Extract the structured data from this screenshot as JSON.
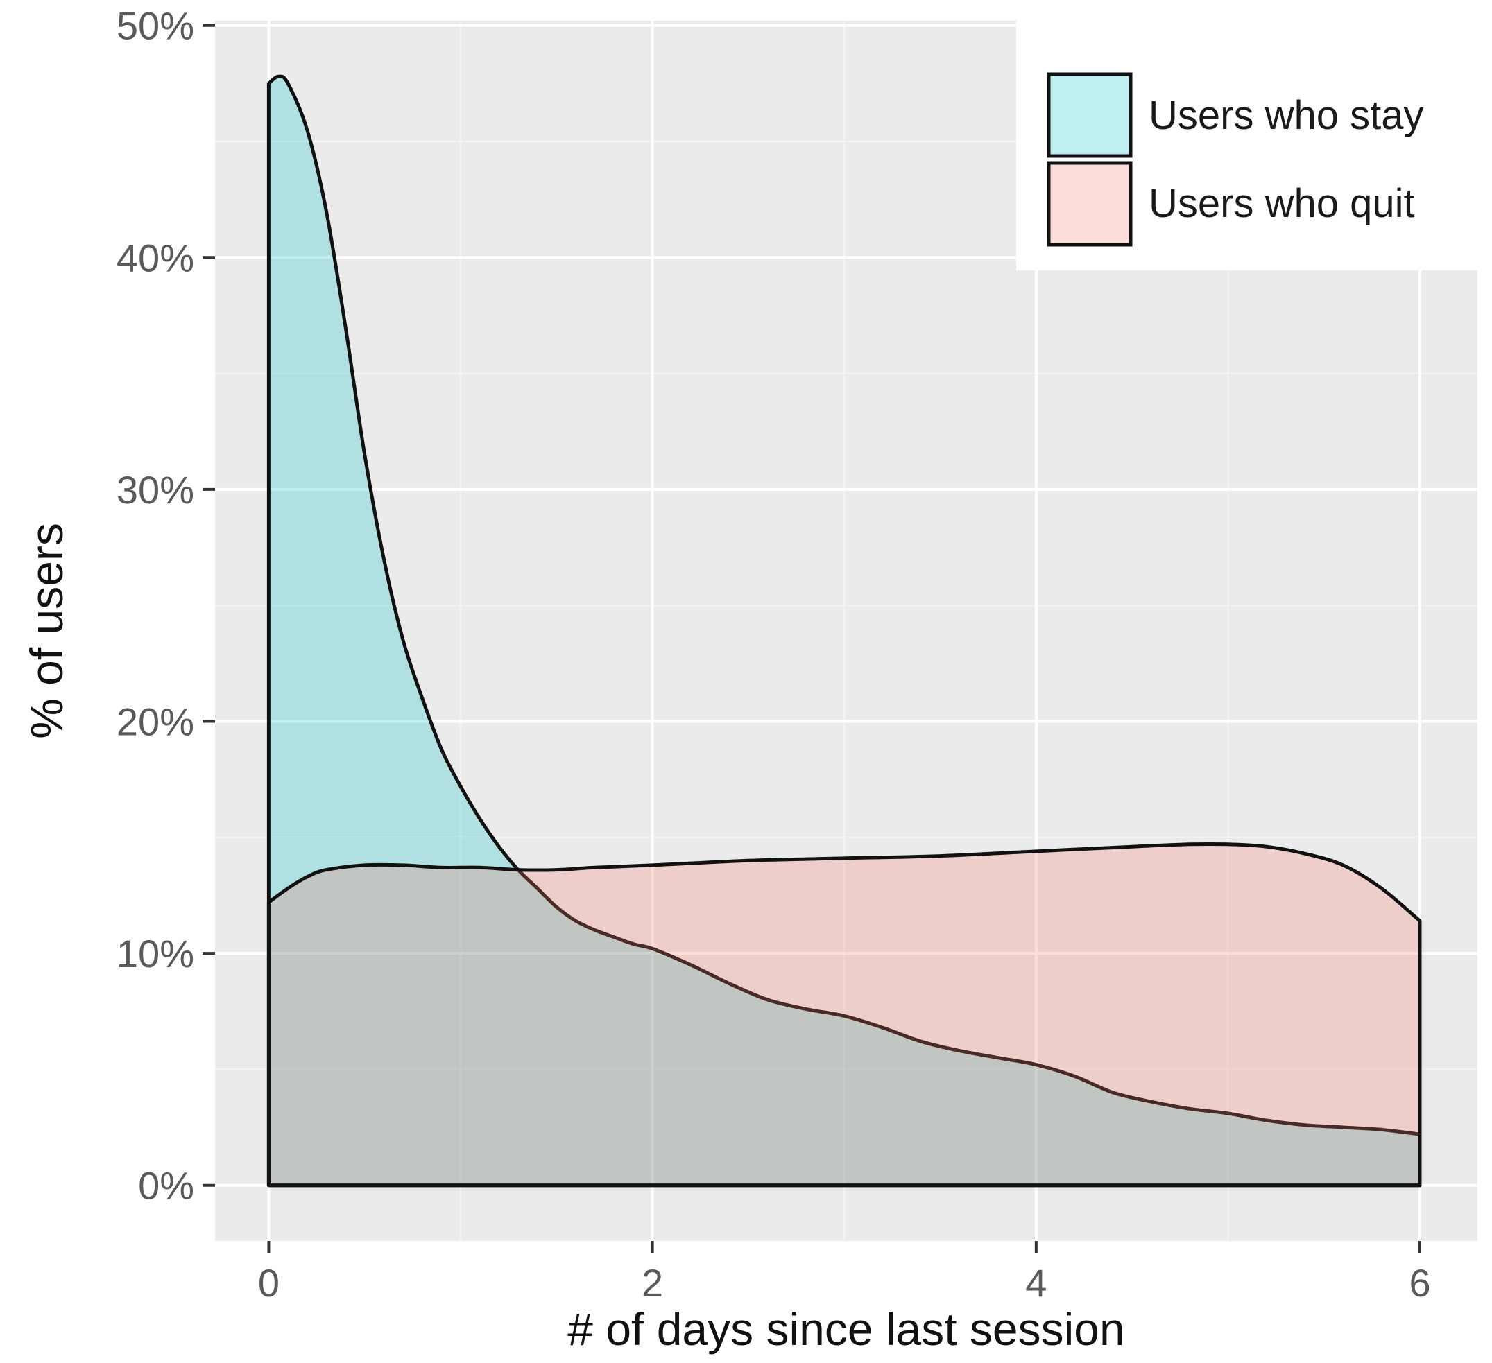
{
  "chart_data": {
    "type": "area",
    "title": "",
    "xlabel": "# of days since last session",
    "ylabel": "% of users",
    "xlim": [
      -0.28,
      6.3
    ],
    "ylim": [
      -0.024,
      0.502
    ],
    "x_ticks": [
      0,
      2,
      4,
      6
    ],
    "x_tick_labels": [
      "0",
      "2",
      "4",
      "6"
    ],
    "y_ticks": [
      0,
      0.1,
      0.2,
      0.3,
      0.4,
      0.5
    ],
    "y_tick_labels": [
      "0%",
      "10%",
      "20%",
      "30%",
      "40%",
      "50%"
    ],
    "grid": true,
    "legend_position": "top-right",
    "series": [
      {
        "name": "Users who stay",
        "color": "#00BFC4",
        "x": [
          0,
          0.05,
          0.1,
          0.2,
          0.3,
          0.4,
          0.5,
          0.6,
          0.7,
          0.8,
          0.9,
          1.0,
          1.1,
          1.2,
          1.3,
          1.4,
          1.5,
          1.6,
          1.7,
          1.8,
          1.9,
          2.0,
          2.2,
          2.4,
          2.6,
          2.8,
          3.0,
          3.2,
          3.4,
          3.6,
          3.8,
          4.0,
          4.2,
          4.4,
          4.6,
          4.8,
          5.0,
          5.2,
          5.4,
          5.6,
          5.8,
          6.0
        ],
        "y": [
          0.475,
          0.478,
          0.475,
          0.455,
          0.42,
          0.37,
          0.315,
          0.27,
          0.235,
          0.21,
          0.188,
          0.172,
          0.158,
          0.146,
          0.136,
          0.128,
          0.12,
          0.114,
          0.11,
          0.107,
          0.104,
          0.102,
          0.095,
          0.087,
          0.08,
          0.076,
          0.073,
          0.068,
          0.062,
          0.058,
          0.055,
          0.052,
          0.047,
          0.04,
          0.036,
          0.033,
          0.031,
          0.028,
          0.026,
          0.025,
          0.024,
          0.022
        ]
      },
      {
        "name": "Users who quit",
        "color": "#F8766D",
        "x": [
          0,
          0.1,
          0.2,
          0.3,
          0.5,
          0.7,
          0.9,
          1.1,
          1.3,
          1.5,
          1.7,
          2.0,
          2.5,
          3.0,
          3.5,
          4.0,
          4.5,
          4.8,
          5.0,
          5.2,
          5.4,
          5.6,
          5.8,
          6.0
        ],
        "y": [
          0.122,
          0.128,
          0.133,
          0.136,
          0.138,
          0.138,
          0.137,
          0.137,
          0.136,
          0.136,
          0.137,
          0.138,
          0.14,
          0.141,
          0.142,
          0.144,
          0.146,
          0.147,
          0.147,
          0.146,
          0.143,
          0.138,
          0.128,
          0.114
        ]
      }
    ]
  }
}
